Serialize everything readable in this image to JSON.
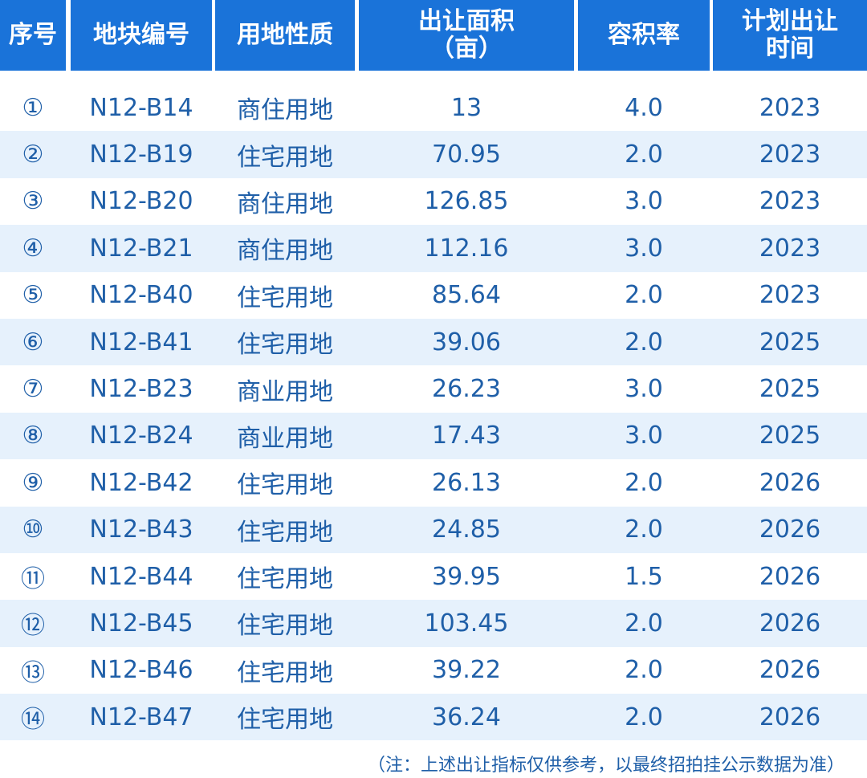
{
  "headers": [
    "序号",
    "地块编号",
    "用地性质",
    "出让面积\n（亩）",
    "容积率",
    "计划出让\n时间"
  ],
  "rows": [
    [
      "①",
      "N12-B14",
      "商住用地",
      "13",
      "4.0",
      "2023"
    ],
    [
      "②",
      "N12-B19",
      "住宅用地",
      "70.95",
      "2.0",
      "2023"
    ],
    [
      "③",
      "N12-B20",
      "商住用地",
      "126.85",
      "3.0",
      "2023"
    ],
    [
      "④",
      "N12-B21",
      "商住用地",
      "112.16",
      "3.0",
      "2023"
    ],
    [
      "⑤",
      "N12-B40",
      "住宅用地",
      "85.64",
      "2.0",
      "2023"
    ],
    [
      "⑥",
      "N12-B41",
      "住宅用地",
      "39.06",
      "2.0",
      "2025"
    ],
    [
      "⑦",
      "N12-B23",
      "商业用地",
      "26.23",
      "3.0",
      "2025"
    ],
    [
      "⑧",
      "N12-B24",
      "商业用地",
      "17.43",
      "3.0",
      "2025"
    ],
    [
      "⑨",
      "N12-B42",
      "住宅用地",
      "26.13",
      "2.0",
      "2026"
    ],
    [
      "⑩",
      "N12-B43",
      "住宅用地",
      "24.85",
      "2.0",
      "2026"
    ],
    [
      "⑪",
      "N12-B44",
      "住宅用地",
      "39.95",
      "1.5",
      "2026"
    ],
    [
      "⑫",
      "N12-B45",
      "住宅用地",
      "103.45",
      "2.0",
      "2026"
    ],
    [
      "⑬",
      "N12-B46",
      "住宅用地",
      "39.22",
      "2.0",
      "2026"
    ],
    [
      "⑭",
      "N12-B47",
      "住宅用地",
      "36.24",
      "2.0",
      "2026"
    ]
  ],
  "note": "（注：上述出让指标仅供参考，以最终招拍挂公示数据为准）",
  "colors": {
    "header_bg": "#1a73d9",
    "header_text": "#ffffff",
    "alt_row_bg": "#e6f1fc",
    "body_text": "#1f5fa8"
  }
}
